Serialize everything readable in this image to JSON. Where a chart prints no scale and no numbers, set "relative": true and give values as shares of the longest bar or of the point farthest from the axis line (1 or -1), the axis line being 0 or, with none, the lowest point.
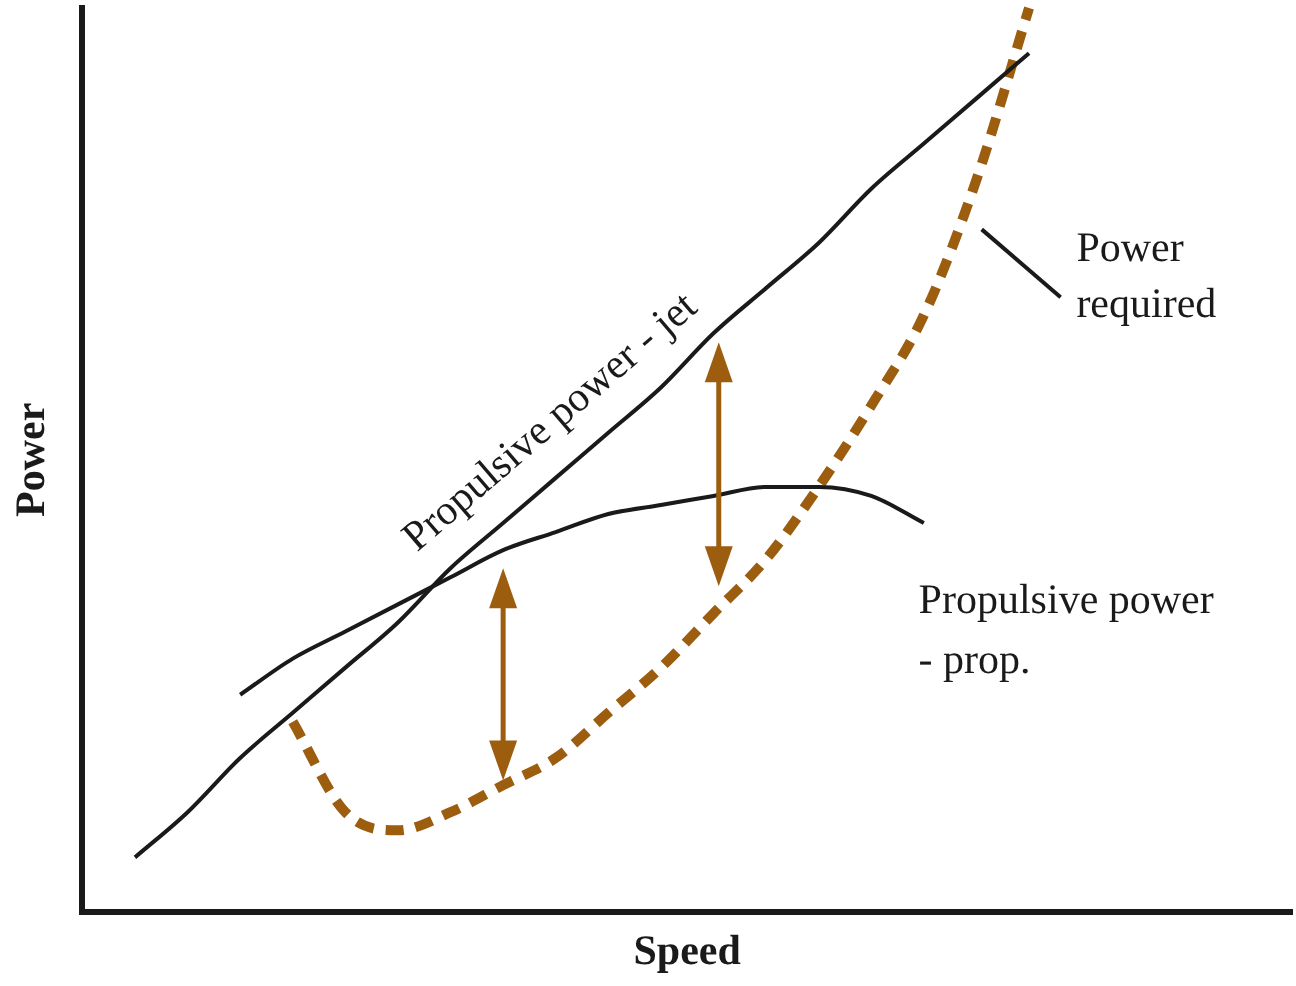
{
  "chart_data": {
    "type": "line",
    "relative": true,
    "xlabel": "Speed",
    "ylabel": "Power",
    "categories": [
      null,
      null,
      null,
      null,
      null,
      null,
      null,
      null,
      null,
      null,
      null,
      null,
      null,
      null,
      null,
      null,
      null,
      null,
      null,
      null,
      null,
      null,
      null,
      null
    ],
    "series": [
      {
        "color": "#1a1a1a",
        "line_style": "solid",
        "values": [
          null,
          0.06,
          0.11,
          0.17,
          0.22,
          0.27,
          0.32,
          0.38,
          0.43,
          0.48,
          0.53,
          0.58,
          0.64,
          0.69,
          0.74,
          0.8,
          0.85,
          0.9,
          0.95,
          null,
          null,
          null,
          null,
          null
        ]
      },
      {
        "color": "#1a1a1a",
        "line_style": "solid",
        "values": [
          null,
          null,
          null,
          0.24,
          0.28,
          0.31,
          0.34,
          0.37,
          0.4,
          0.42,
          0.44,
          0.45,
          0.46,
          0.47,
          0.47,
          0.46,
          0.43,
          null,
          null,
          null,
          null,
          null,
          null,
          null
        ]
      },
      {
        "color": "#9c5d0f",
        "line_style": "dashed",
        "values": [
          null,
          null,
          null,
          null,
          0.21,
          0.11,
          0.09,
          0.11,
          0.14,
          0.17,
          0.22,
          0.27,
          0.33,
          0.39,
          0.47,
          0.56,
          0.66,
          0.81,
          1,
          null,
          null,
          null,
          null,
          null
        ]
      }
    ],
    "annotations": [
      "Propulsive power - jet",
      "Propulsive power - prop.",
      "Power required"
    ],
    "grid": false,
    "legend": false,
    "marker": "none"
  }
}
